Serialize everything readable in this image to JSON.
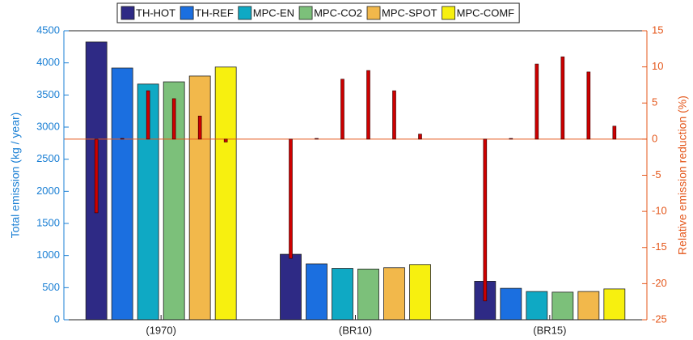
{
  "chart_data": {
    "type": "bar",
    "categories": [
      "(1970)",
      "(BR10)",
      "(BR15)"
    ],
    "y_label": "Total emission (kg / year)",
    "y2_label": "Relative emission reduction (%)",
    "ylim": [
      0,
      4500
    ],
    "yticks": [
      0,
      500,
      1000,
      1500,
      2000,
      2500,
      3000,
      3500,
      4000,
      4500
    ],
    "y2lim": [
      -25,
      15
    ],
    "y2ticks": [
      -25,
      -20,
      -15,
      -10,
      -5,
      0,
      5,
      10,
      15
    ],
    "y_color": "#1a7fd4",
    "y2_color": "#e4571b",
    "reduction_color": "#cc0000",
    "series": [
      {
        "name": "TH-HOT",
        "color": "#2e2a85",
        "values": [
          4325,
          1020,
          600
        ],
        "reduction": [
          -10.2,
          -16.5,
          -22.4
        ]
      },
      {
        "name": "TH-REF",
        "color": "#1b6fe0",
        "values": [
          3920,
          870,
          490
        ],
        "reduction": [
          0.1,
          0.1,
          0.1
        ]
      },
      {
        "name": "MPC-EN",
        "color": "#0fa9c4",
        "values": [
          3670,
          800,
          440
        ],
        "reduction": [
          6.7,
          8.3,
          10.4
        ]
      },
      {
        "name": "MPC-CO2",
        "color": "#7cc07a",
        "values": [
          3705,
          790,
          430
        ],
        "reduction": [
          5.6,
          9.5,
          11.4
        ]
      },
      {
        "name": "MPC-SPOT",
        "color": "#f2b84b",
        "values": [
          3795,
          810,
          440
        ],
        "reduction": [
          3.2,
          6.7,
          9.3
        ]
      },
      {
        "name": "MPC-COMF",
        "color": "#f7f00f",
        "values": [
          3935,
          860,
          480
        ],
        "reduction": [
          -0.4,
          0.7,
          1.8
        ]
      }
    ]
  }
}
